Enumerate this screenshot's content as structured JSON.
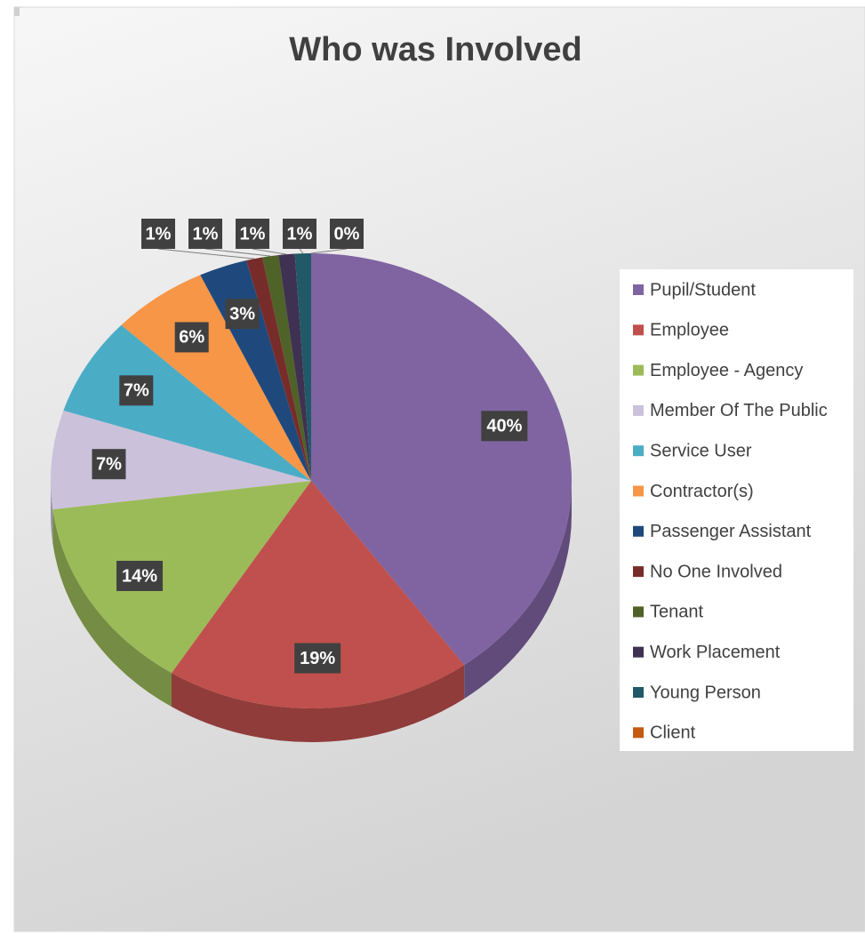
{
  "chart_data": {
    "type": "pie",
    "title": "Who was Involved",
    "categories": [
      "Pupil/Student",
      "Employee",
      "Employee - Agency",
      "Member Of The Public",
      "Service User",
      "Contractor(s)",
      "Passenger Assistant",
      "No One Involved",
      "Tenant",
      "Work Placement",
      "Young Person",
      "Client"
    ],
    "values": [
      40,
      19,
      14,
      7,
      7,
      6,
      3,
      1,
      1,
      1,
      1,
      0
    ],
    "value_labels": [
      "40%",
      "19%",
      "14%",
      "7%",
      "7%",
      "6%",
      "3%",
      "1%",
      "1%",
      "1%",
      "1%",
      "0%"
    ],
    "colors": [
      "#8064a2",
      "#c0504d",
      "#9bbb59",
      "#ccc1da",
      "#4bacc6",
      "#f79646",
      "#1f497d",
      "#772c2a",
      "#4f6228",
      "#3f3151",
      "#215968",
      "#c55a11"
    ],
    "legend": "right"
  }
}
